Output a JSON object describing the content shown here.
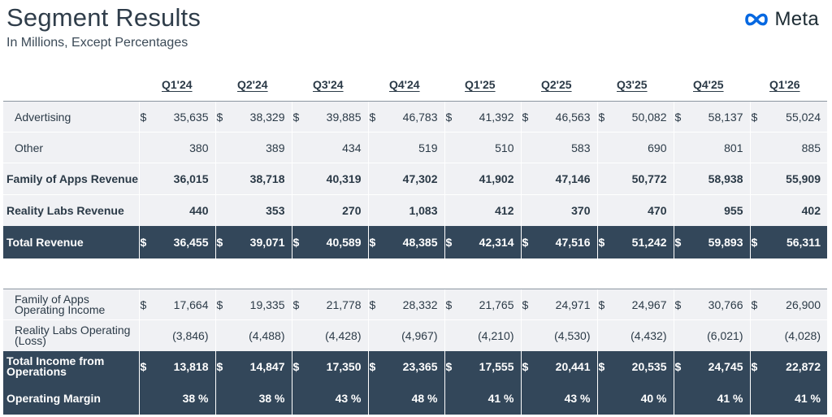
{
  "header": {
    "title": "Segment Results",
    "subtitle": "In Millions, Except Percentages",
    "logo_text": "Meta",
    "logo_icon": "meta-infinity-icon"
  },
  "colors": {
    "dark_row": "#33475a",
    "light_row": "#f0f1f4",
    "logo_blue": "#0668e1"
  },
  "quarters": [
    "Q1'24",
    "Q2'24",
    "Q3'24",
    "Q4'24",
    "Q1'25",
    "Q2'25",
    "Q3'25",
    "Q4'25",
    "Q1'26"
  ],
  "rows": {
    "advertising": {
      "label": "Advertising",
      "values": [
        "35,635",
        "38,329",
        "39,885",
        "46,783",
        "41,392",
        "46,563",
        "50,082",
        "58,137",
        "55,024"
      ]
    },
    "other": {
      "label": "Other",
      "values": [
        "380",
        "389",
        "434",
        "519",
        "510",
        "583",
        "690",
        "801",
        "885"
      ]
    },
    "foa_revenue": {
      "label": "Family of Apps Revenue",
      "values": [
        "36,015",
        "38,718",
        "40,319",
        "47,302",
        "41,902",
        "47,146",
        "50,772",
        "58,938",
        "55,909"
      ]
    },
    "rl_revenue": {
      "label": "Reality Labs Revenue",
      "values": [
        "440",
        "353",
        "270",
        "1,083",
        "412",
        "370",
        "470",
        "955",
        "402"
      ]
    },
    "total_revenue": {
      "label": "Total Revenue",
      "values": [
        "36,455",
        "39,071",
        "40,589",
        "48,385",
        "42,314",
        "47,516",
        "51,242",
        "59,893",
        "56,311"
      ]
    },
    "foa_income": {
      "label": "Family of Apps Operating Income",
      "values": [
        "17,664",
        "19,335",
        "21,778",
        "28,332",
        "21,765",
        "24,971",
        "24,967",
        "30,766",
        "26,900"
      ]
    },
    "rl_loss": {
      "label": "Reality Labs Operating (Loss)",
      "values": [
        "(3,846)",
        "(4,488)",
        "(4,428)",
        "(4,967)",
        "(4,210)",
        "(4,530)",
        "(4,432)",
        "(6,021)",
        "(4,028)"
      ]
    },
    "total_income": {
      "label": "Total Income from Operations",
      "values": [
        "13,818",
        "14,847",
        "17,350",
        "23,365",
        "17,555",
        "20,441",
        "20,535",
        "24,745",
        "22,872"
      ]
    },
    "operating_margin": {
      "label": "Operating Margin",
      "values": [
        "38 %",
        "38 %",
        "43 %",
        "48 %",
        "41 %",
        "43 %",
        "40 %",
        "41 %",
        "41 %"
      ]
    }
  },
  "currency_symbol": "$"
}
